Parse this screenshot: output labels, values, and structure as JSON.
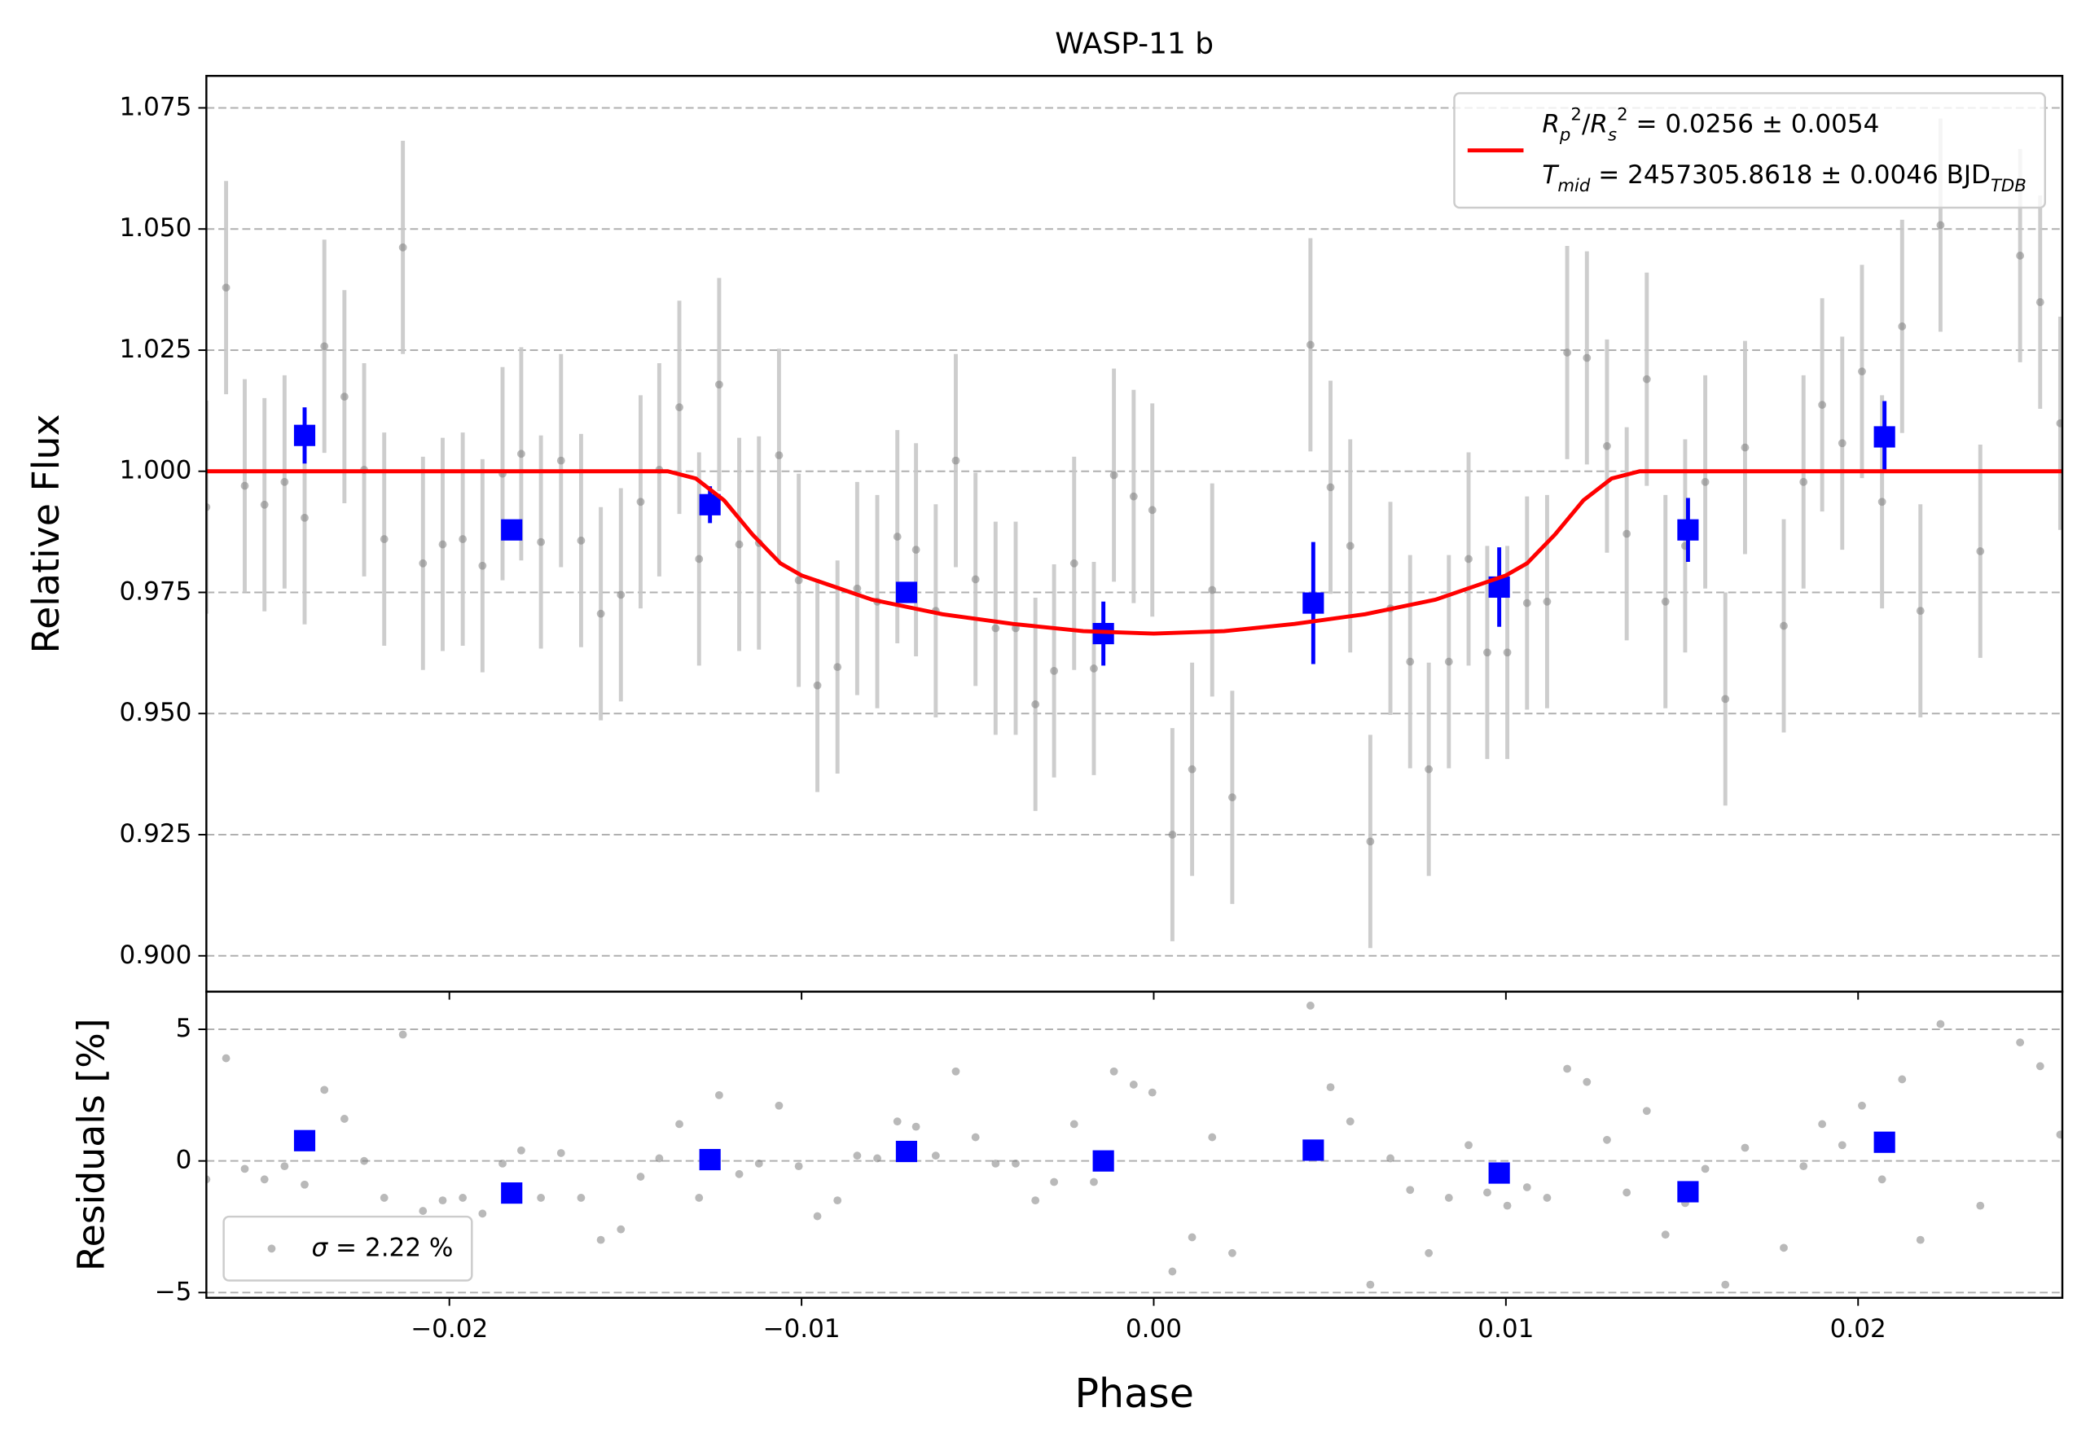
{
  "chart_data": [
    {
      "type": "scatter",
      "title": "WASP-11 b",
      "ylabel": "Relative Flux",
      "xlim": [
        -0.0269,
        0.0258
      ],
      "ylim": [
        0.8926,
        1.0816
      ],
      "yticks": [
        {
          "value": 0.9,
          "label": "0.900"
        },
        0.925,
        {
          "value": 0.95,
          "label": "0.950"
        },
        0.975,
        {
          "value": 1.0,
          "label": "1.000"
        },
        1.025,
        {
          "value": 1.05,
          "label": "1.050"
        },
        1.075
      ],
      "grid": true,
      "legend": "upper right",
      "series": [
        {
          "type": "scatter",
          "marker": "circle",
          "color": "#808080",
          "ecolor": "#c8c8c8",
          "yerr": 0.022,
          "x": [
            -0.0269,
            -0.02634,
            -0.02581,
            -0.02525,
            -0.02468,
            -0.02411,
            -0.02355,
            -0.02298,
            -0.02242,
            -0.02185,
            -0.02132,
            -0.02075,
            -0.02019,
            -0.01962,
            -0.01906,
            -0.01849,
            -0.01796,
            -0.0174,
            -0.01683,
            -0.01626,
            -0.0157,
            -0.01513,
            -0.01457,
            -0.01404,
            -0.01347,
            -0.01291,
            -0.01234,
            -0.01177,
            -0.01121,
            -0.01064,
            -0.01008,
            -0.00955,
            -0.00898,
            -0.00842,
            -0.00785,
            -0.00728,
            -0.00675,
            -0.00619,
            -0.00562,
            -0.00506,
            -0.00449,
            -0.00392,
            -0.00336,
            -0.00283,
            -0.00226,
            -0.0017,
            -0.00113,
            -0.00057,
            -4e-05,
            0.00053,
            0.00109,
            0.00166,
            0.00223,
            0.00445,
            0.00502,
            0.00558,
            0.00615,
            0.00672,
            0.00728,
            0.00781,
            0.00838,
            0.00894,
            0.00947,
            0.01004,
            0.0106,
            0.01117,
            0.01174,
            0.0123,
            0.01287,
            0.01343,
            0.014,
            0.01453,
            0.01509,
            0.01566,
            0.01623,
            0.01679,
            0.01789,
            0.01845,
            0.01898,
            0.01955,
            0.02011,
            0.02068,
            0.02125,
            0.02177,
            0.02234,
            0.02347,
            0.0246,
            0.02517,
            0.02574
          ],
          "values": [
            0.9926,
            1.0379,
            0.997,
            0.9931,
            0.9978,
            0.9904,
            1.0258,
            1.0154,
            1.0003,
            0.986,
            1.0462,
            0.981,
            0.9849,
            0.986,
            0.9805,
            0.9995,
            1.0036,
            0.9854,
            1.0022,
            0.9857,
            0.9706,
            0.9745,
            0.9937,
            1.0003,
            1.0132,
            0.9819,
            1.0179,
            0.9849,
            0.9852,
            1.0033,
            0.9775,
            0.9558,
            0.9596,
            0.9758,
            0.9731,
            0.9865,
            0.9838,
            0.9712,
            1.0022,
            0.9777,
            0.9676,
            0.9676,
            0.9519,
            0.9588,
            0.981,
            0.9593,
            0.9992,
            0.9948,
            0.992,
            0.925,
            0.9385,
            0.9755,
            0.9327,
            1.0261,
            0.9967,
            0.9846,
            0.9236,
            0.9717,
            0.9607,
            0.9385,
            0.9607,
            0.9819,
            0.9626,
            0.9626,
            0.9728,
            0.9731,
            1.0245,
            1.0234,
            1.0052,
            0.9871,
            1.019,
            0.9731,
            0.9846,
            0.9978,
            0.953,
            1.0049,
            0.9681,
            0.9978,
            1.0137,
            1.0058,
            1.0206,
            0.9937,
            1.0299,
            0.9712,
            1.0508,
            0.9835,
            1.0445,
            1.0349,
            1.0099
          ]
        },
        {
          "type": "scatter",
          "marker": "square",
          "color": "#0000ff",
          "ecolor": "#0000ff",
          "x": [
            -0.02411,
            -0.01823,
            -0.0126,
            -0.00702,
            -0.00143,
            0.00453,
            0.00981,
            0.01517,
            0.02075
          ],
          "values": [
            1.0074,
            0.9879,
            0.9931,
            0.975,
            0.9665,
            0.9728,
            0.9761,
            0.9879,
            1.0071
          ],
          "yerr": [
            0.0058,
            0.0017,
            0.0038,
            0.0019,
            0.0066,
            0.0126,
            0.0082,
            0.0066,
            0.0074
          ]
        },
        {
          "type": "line",
          "color": "#ff0000",
          "name": [
            [
              {
                "text": "R",
                "italic": true
              },
              {
                "text": "p",
                "italic": true,
                "shift": "sub"
              },
              {
                "text": "2",
                "shift": "super"
              },
              {
                "text": "/"
              },
              {
                "text": "R",
                "italic": true
              },
              {
                "text": "s",
                "italic": true,
                "shift": "sub"
              },
              {
                "text": "2",
                "shift": "super"
              },
              {
                "text": " = 0.0256 ± 0.0054"
              }
            ],
            [
              {
                "text": "T",
                "italic": true
              },
              {
                "text": "mid",
                "italic": true,
                "shift": "sub"
              },
              {
                "text": " = 2457305.8618 ± 0.0046 BJD"
              },
              {
                "text": "TDB",
                "italic": true,
                "shift": "sub"
              }
            ]
          ],
          "x": [
            -0.0269,
            -0.0138,
            -0.013,
            -0.0122,
            -0.0114,
            -0.0106,
            -0.01,
            -0.008,
            -0.006,
            -0.004,
            -0.002,
            0,
            0.002,
            0.004,
            0.006,
            0.008,
            0.01,
            0.0106,
            0.0114,
            0.0122,
            0.013,
            0.0138,
            0.0258
          ],
          "values": [
            1.0,
            1.0,
            0.9985,
            0.994,
            0.987,
            0.981,
            0.9785,
            0.9735,
            0.9705,
            0.9685,
            0.967,
            0.9665,
            0.967,
            0.9685,
            0.9705,
            0.9735,
            0.9785,
            0.981,
            0.987,
            0.994,
            0.9985,
            1.0,
            1.0
          ]
        }
      ]
    },
    {
      "type": "scatter",
      "ylabel": "Residuals [%]",
      "xlabel": "Phase",
      "xlim": [
        -0.0269,
        0.0258
      ],
      "ylim": [
        -5.2,
        6.43
      ],
      "xticks": [
        {
          "value": -0.02,
          "label": "−0.02"
        },
        {
          "value": -0.01,
          "label": "−0.01"
        },
        {
          "value": 0,
          "label": "0.00"
        },
        0.01,
        0.02
      ],
      "yticks": [
        {
          "value": -5,
          "label": "−5"
        },
        0,
        5
      ],
      "grid": true,
      "legend": "lower left",
      "series": [
        {
          "type": "scatter",
          "marker": "circle",
          "color": "#808080",
          "name": [
            [
              {
                "text": "σ",
                "italic": true
              },
              {
                "text": " = 2.22 %"
              }
            ]
          ],
          "x": [
            -0.0269,
            -0.02634,
            -0.02581,
            -0.02525,
            -0.02468,
            -0.02411,
            -0.02355,
            -0.02298,
            -0.02242,
            -0.02185,
            -0.02132,
            -0.02075,
            -0.02019,
            -0.01962,
            -0.01906,
            -0.01849,
            -0.01796,
            -0.0174,
            -0.01683,
            -0.01626,
            -0.0157,
            -0.01513,
            -0.01457,
            -0.01404,
            -0.01347,
            -0.01291,
            -0.01234,
            -0.01177,
            -0.01121,
            -0.01064,
            -0.01008,
            -0.00955,
            -0.00898,
            -0.00842,
            -0.00785,
            -0.00728,
            -0.00675,
            -0.00619,
            -0.00562,
            -0.00506,
            -0.00449,
            -0.00392,
            -0.00336,
            -0.00283,
            -0.00226,
            -0.0017,
            -0.00113,
            -0.00057,
            -4e-05,
            0.00053,
            0.00109,
            0.00166,
            0.00223,
            0.00445,
            0.00502,
            0.00558,
            0.00615,
            0.00672,
            0.00728,
            0.00781,
            0.00838,
            0.00894,
            0.00947,
            0.01004,
            0.0106,
            0.01117,
            0.01174,
            0.0123,
            0.01287,
            0.01343,
            0.014,
            0.01453,
            0.01509,
            0.01566,
            0.01623,
            0.01679,
            0.01789,
            0.01845,
            0.01898,
            0.01955,
            0.02011,
            0.02068,
            0.02125,
            0.02177,
            0.02234,
            0.02347,
            0.0246,
            0.02517,
            0.02574
          ],
          "values": [
            -0.7,
            3.9,
            -0.3,
            -0.7,
            -0.2,
            -0.9,
            2.7,
            1.6,
            0,
            -1.4,
            4.8,
            -1.9,
            -1.5,
            -1.4,
            -2.0,
            -0.1,
            0.4,
            -1.4,
            0.3,
            -1.4,
            -3.0,
            -2.6,
            -0.6,
            0.1,
            1.4,
            -1.4,
            2.5,
            -0.5,
            -0.1,
            2.1,
            -0.2,
            -2.1,
            -1.5,
            0.2,
            0.1,
            1.5,
            1.3,
            0.2,
            3.4,
            0.9,
            -0.1,
            -0.1,
            -1.5,
            -0.8,
            1.4,
            -0.8,
            3.4,
            2.9,
            2.6,
            -4.2,
            -2.9,
            0.9,
            -3.5,
            5.9,
            2.8,
            1.5,
            -4.7,
            0.1,
            -1.1,
            -3.5,
            -1.4,
            0.6,
            -1.2,
            -1.7,
            -1.0,
            -1.4,
            3.5,
            3.0,
            0.8,
            -1.2,
            1.9,
            -2.8,
            -1.6,
            -0.3,
            -4.7,
            0.5,
            -3.3,
            -0.2,
            1.4,
            0.6,
            2.1,
            -0.7,
            3.1,
            -3.0,
            5.2,
            -1.7,
            4.5,
            3.6,
            1.0
          ]
        },
        {
          "type": "scatter",
          "marker": "square",
          "color": "#0000ff",
          "x": [
            -0.02411,
            -0.01823,
            -0.0126,
            -0.00702,
            -0.00143,
            0.00453,
            0.00981,
            0.01517,
            0.02075
          ],
          "values": [
            0.77,
            -1.22,
            0.05,
            0.36,
            0,
            0.41,
            -0.46,
            -1.17,
            0.71
          ]
        }
      ]
    }
  ]
}
